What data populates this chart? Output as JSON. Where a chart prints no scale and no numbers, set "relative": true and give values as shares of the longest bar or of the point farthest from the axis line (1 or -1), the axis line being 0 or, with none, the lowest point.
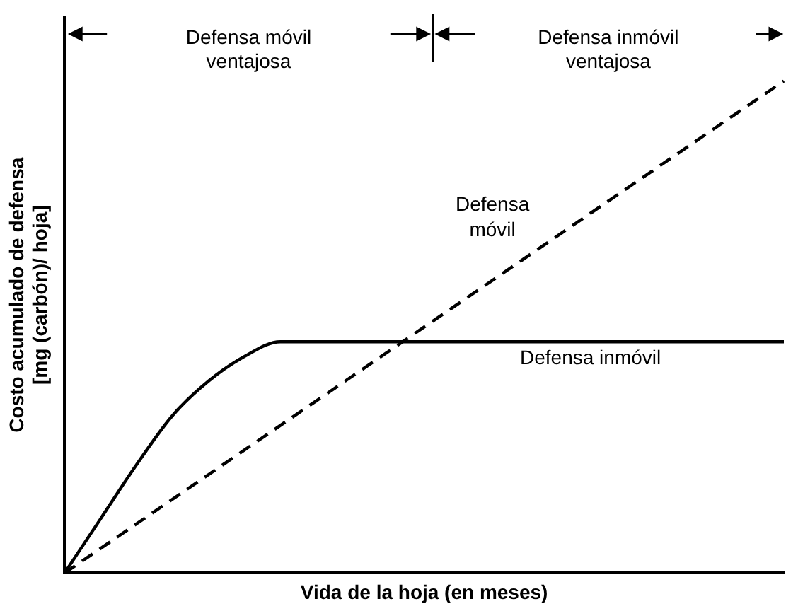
{
  "chart_data": {
    "type": "line",
    "relative": true,
    "xlabel": "Vida de la hoja (en meses)",
    "ylabel": "Costo acumulado de defensa\n[mg (carbón)/ hoja]",
    "categories": [
      null,
      null,
      null,
      null,
      null,
      null,
      null,
      null,
      null,
      null,
      null,
      null,
      null,
      null,
      null,
      null,
      null,
      null,
      null,
      null,
      null
    ],
    "series": [
      {
        "name": "Defensa móvil",
        "color": "#000000",
        "line_style": "dashed",
        "values": [
          0,
          0.05,
          0.1,
          0.15,
          0.2,
          0.25,
          0.3,
          0.35,
          0.4,
          0.45,
          0.5,
          0.55,
          0.6,
          0.65,
          0.7,
          0.75,
          0.8,
          0.85,
          0.9,
          0.95,
          1
        ]
      },
      {
        "name": "Defensa inmóvil",
        "color": "#000000",
        "line_style": "solid",
        "values": [
          0,
          0.11,
          0.22,
          0.32,
          0.39,
          0.44,
          0.47,
          0.47,
          0.47,
          0.47,
          0.47,
          0.47,
          0.47,
          0.47,
          0.47,
          0.47,
          0.47,
          0.47,
          0.47,
          0.47,
          0.47
        ]
      }
    ],
    "annotations": [
      "Defensa móvil ventajosa",
      "Defensa inmóvil ventajosa"
    ],
    "grid": false,
    "legend": false,
    "marker": "none"
  }
}
